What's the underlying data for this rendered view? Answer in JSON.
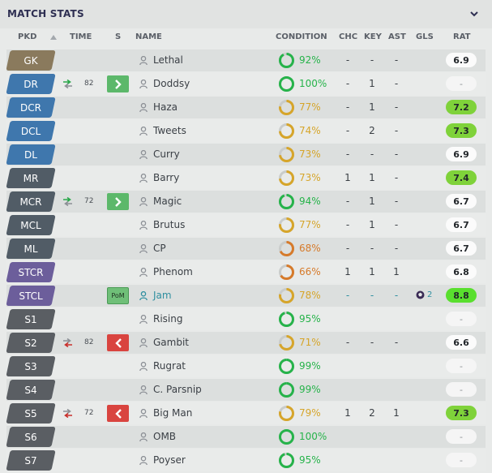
{
  "panel": {
    "title": "MATCH STATS"
  },
  "columns": {
    "pkd": "PKD",
    "time": "TIME",
    "s": "S",
    "name": "NAME",
    "condition": "CONDITION",
    "chc": "CHC",
    "key": "KEY",
    "ast": "AST",
    "gls": "GLS",
    "rat": "RAT"
  },
  "colors": {
    "goalkeeper": "#8a7a5d",
    "defender": "#3f77ad",
    "midfielder": "#515c66",
    "striker": "#6c5e9b",
    "substitute": "#5a5e63",
    "condition_green": "#26b34a",
    "condition_yellow": "#d6a52a",
    "condition_orange": "#d67a2a",
    "rating_green": "#7fd23a",
    "rating_bright": "#59df2e",
    "sub_on": "#5cb86a",
    "sub_off": "#d9443f"
  },
  "players": [
    {
      "pos": "GK",
      "role": "goalkeeper",
      "name": "Lethal",
      "cond": "92%",
      "cond_value": 92,
      "cond_level": "green",
      "chc": "-",
      "key": "-",
      "ast": "-",
      "gls": "",
      "rat": "6.9",
      "rat_style": "white"
    },
    {
      "pos": "DR",
      "role": "defender",
      "sub_icon": "sub-on",
      "sub_time": "82",
      "s": "sub-on",
      "name": "Doddsy",
      "cond": "100%",
      "cond_value": 100,
      "cond_level": "green",
      "chc": "-",
      "key": "1",
      "ast": "-",
      "gls": "",
      "rat": "-",
      "rat_style": "none"
    },
    {
      "pos": "DCR",
      "role": "defender",
      "name": "Haza",
      "cond": "77%",
      "cond_value": 77,
      "cond_level": "yellow",
      "chc": "-",
      "key": "1",
      "ast": "-",
      "gls": "",
      "rat": "7.2",
      "rat_style": "green"
    },
    {
      "pos": "DCL",
      "role": "defender",
      "name": "Tweets",
      "cond": "74%",
      "cond_value": 74,
      "cond_level": "yellow",
      "chc": "-",
      "key": "2",
      "ast": "-",
      "gls": "",
      "rat": "7.3",
      "rat_style": "green"
    },
    {
      "pos": "DL",
      "role": "defender",
      "name": "Curry",
      "cond": "73%",
      "cond_value": 73,
      "cond_level": "yellow",
      "chc": "-",
      "key": "-",
      "ast": "-",
      "gls": "",
      "rat": "6.9",
      "rat_style": "white"
    },
    {
      "pos": "MR",
      "role": "midfielder",
      "name": "Barry",
      "cond": "73%",
      "cond_value": 73,
      "cond_level": "yellow",
      "chc": "1",
      "key": "1",
      "ast": "-",
      "gls": "",
      "rat": "7.4",
      "rat_style": "green"
    },
    {
      "pos": "MCR",
      "role": "midfielder",
      "sub_icon": "sub-on",
      "sub_time": "72",
      "s": "sub-on",
      "name": "Magic",
      "cond": "94%",
      "cond_value": 94,
      "cond_level": "green",
      "chc": "-",
      "key": "1",
      "ast": "-",
      "gls": "",
      "rat": "6.7",
      "rat_style": "white"
    },
    {
      "pos": "MCL",
      "role": "midfielder",
      "name": "Brutus",
      "cond": "77%",
      "cond_value": 77,
      "cond_level": "yellow",
      "chc": "-",
      "key": "1",
      "ast": "-",
      "gls": "",
      "rat": "6.7",
      "rat_style": "white"
    },
    {
      "pos": "ML",
      "role": "midfielder",
      "name": "CP",
      "cond": "68%",
      "cond_value": 68,
      "cond_level": "orange",
      "chc": "-",
      "key": "-",
      "ast": "-",
      "gls": "",
      "rat": "6.7",
      "rat_style": "white"
    },
    {
      "pos": "STCR",
      "role": "striker",
      "name": "Phenom",
      "cond": "66%",
      "cond_value": 66,
      "cond_level": "orange",
      "chc": "1",
      "key": "1",
      "ast": "1",
      "gls": "",
      "rat": "6.8",
      "rat_style": "white"
    },
    {
      "pos": "STCL",
      "role": "striker",
      "s": "pom",
      "s_label": "PoM",
      "name": "Jam",
      "highlight": true,
      "cond": "78%",
      "cond_value": 78,
      "cond_level": "yellow",
      "chc": "-",
      "key": "-",
      "ast": "-",
      "gls": "2",
      "rat": "8.8",
      "rat_style": "bright"
    },
    {
      "pos": "S1",
      "role": "substitute",
      "name": "Rising",
      "cond": "95%",
      "cond_value": 95,
      "cond_level": "green",
      "chc": "",
      "key": "",
      "ast": "",
      "gls": "",
      "rat": "-",
      "rat_style": "none"
    },
    {
      "pos": "S2",
      "role": "substitute",
      "sub_icon": "sub-off",
      "sub_time": "82",
      "s": "sub-off",
      "name": "Gambit",
      "cond": "71%",
      "cond_value": 71,
      "cond_level": "yellow",
      "chc": "-",
      "key": "-",
      "ast": "-",
      "gls": "",
      "rat": "6.6",
      "rat_style": "white"
    },
    {
      "pos": "S3",
      "role": "substitute",
      "name": "Rugrat",
      "cond": "99%",
      "cond_value": 99,
      "cond_level": "green",
      "chc": "",
      "key": "",
      "ast": "",
      "gls": "",
      "rat": "-",
      "rat_style": "none"
    },
    {
      "pos": "S4",
      "role": "substitute",
      "name": "C. Parsnip",
      "cond": "99%",
      "cond_value": 99,
      "cond_level": "green",
      "chc": "",
      "key": "",
      "ast": "",
      "gls": "",
      "rat": "-",
      "rat_style": "none"
    },
    {
      "pos": "S5",
      "role": "substitute",
      "sub_icon": "sub-off",
      "sub_time": "72",
      "s": "sub-off",
      "name": "Big Man",
      "cond": "79%",
      "cond_value": 79,
      "cond_level": "yellow",
      "chc": "1",
      "key": "2",
      "ast": "1",
      "gls": "",
      "rat": "7.3",
      "rat_style": "green"
    },
    {
      "pos": "S6",
      "role": "substitute",
      "name": "OMB",
      "cond": "100%",
      "cond_value": 100,
      "cond_level": "green",
      "chc": "",
      "key": "",
      "ast": "",
      "gls": "",
      "rat": "-",
      "rat_style": "none"
    },
    {
      "pos": "S7",
      "role": "substitute",
      "name": "Poyser",
      "cond": "95%",
      "cond_value": 95,
      "cond_level": "green",
      "chc": "",
      "key": "",
      "ast": "",
      "gls": "",
      "rat": "-",
      "rat_style": "none"
    }
  ]
}
